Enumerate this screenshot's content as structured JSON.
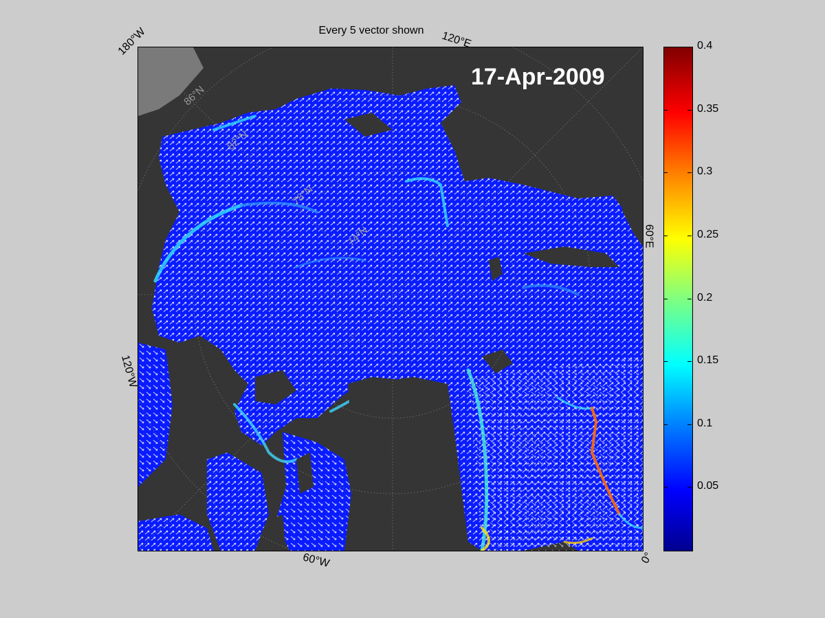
{
  "title": "Every 5 vector shown",
  "date": "17-Apr-2009",
  "lon_labels": {
    "w180": "180°W",
    "e120": "120°E",
    "e60": "60°E",
    "w120": "120°W",
    "w60": "60°W",
    "zero": "0°"
  },
  "lat_labels": [
    "86°N",
    "82°N",
    "78°N",
    "74°N"
  ],
  "colorbar": {
    "min": 0,
    "max": 0.4,
    "colormap": "jet",
    "ticks": [
      "0.4",
      "0.35",
      "0.3",
      "0.25",
      "0.2",
      "0.15",
      "0.1",
      "0.05"
    ]
  },
  "colors": {
    "background": "#cccccc",
    "land": "#353535",
    "ice_low_speed": "#0a1cff",
    "vectors": "#ffffff"
  }
}
